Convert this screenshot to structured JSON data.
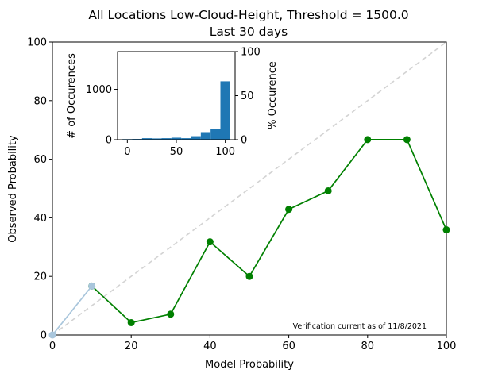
{
  "chart_data": [
    {
      "type": "line",
      "title_line1": "All Locations Low-Cloud-Height, Threshold = 1500.0",
      "title_line2": "Last 30 days",
      "xlabel": "Model Probability",
      "ylabel": "Observed Probability",
      "xlim": [
        0,
        100
      ],
      "ylim": [
        0,
        100
      ],
      "xticks": [
        "0",
        "20",
        "40",
        "60",
        "80",
        "100"
      ],
      "yticks": [
        "0",
        "20",
        "40",
        "60",
        "80",
        "100"
      ],
      "annotation": "Verification current as of 11/8/2021",
      "grid": false,
      "series": [
        {
          "color": "#008000",
          "x": [
            10,
            20,
            30,
            40,
            50,
            60,
            70,
            80,
            90,
            100
          ],
          "y": [
            16.7,
            4.2,
            7.1,
            31.8,
            20.0,
            42.9,
            49.2,
            66.7,
            66.7,
            35.9
          ]
        },
        {
          "color": "#a9c6dc",
          "x": [
            0,
            10
          ],
          "y": [
            0,
            16.7
          ]
        }
      ],
      "reference_line": {
        "color": "#d3d3d3",
        "style": "dashed",
        "x": [
          0,
          100
        ],
        "y": [
          0,
          100
        ]
      }
    },
    {
      "type": "bar",
      "ylabel_left": "# of Occurences",
      "ylabel_right": "% Occurence",
      "xlim": [
        -10,
        110
      ],
      "ylim_left": [
        0,
        1750
      ],
      "ylim_right": [
        0,
        100
      ],
      "xticks": [
        "0",
        "50",
        "100"
      ],
      "yticks_left": [
        "0",
        "1000"
      ],
      "yticks_right": [
        "0",
        "50",
        "100"
      ],
      "bar_color": "#1f77b4",
      "bins": [
        [
          -5,
          5
        ],
        [
          5,
          15
        ],
        [
          15,
          25
        ],
        [
          25,
          35
        ],
        [
          35,
          45
        ],
        [
          45,
          55
        ],
        [
          55,
          65
        ],
        [
          65,
          75
        ],
        [
          75,
          85
        ],
        [
          85,
          95
        ],
        [
          95,
          105
        ]
      ],
      "values": [
        12,
        15,
        30,
        25,
        30,
        40,
        30,
        70,
        150,
        210,
        1160
      ]
    }
  ]
}
